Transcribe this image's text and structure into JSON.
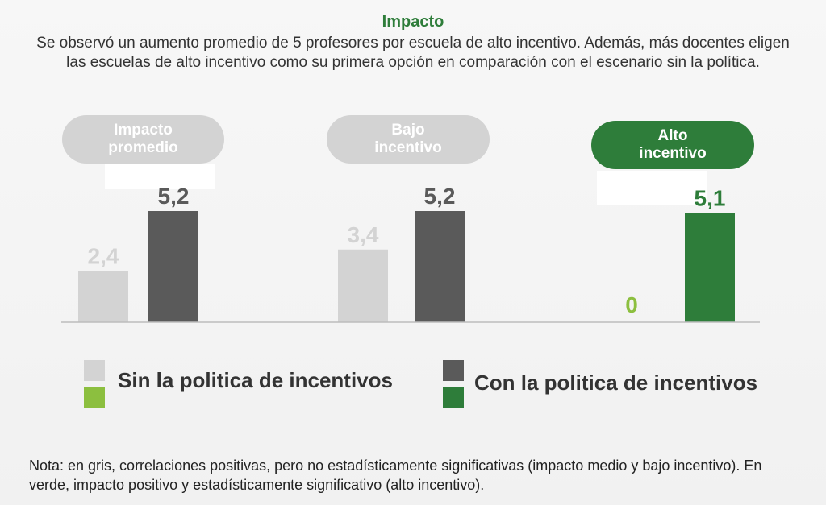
{
  "title": "Impacto",
  "subtitle": "Se observó un aumento promedio de 5 profesores por escuela de alto incentivo. Además, más docentes eligen las escuelas de alto incentivo como su primera opción en comparación con el escenario sin la política.",
  "colors": {
    "gray_light": "#d3d3d3",
    "gray_dark": "#5a5a5a",
    "green_light": "#8cbf3f",
    "green_dark": "#2e7d3a"
  },
  "chart_data": {
    "type": "bar",
    "categories": [
      "Impacto\npromedio",
      "Bajo\nincentivo",
      "Alto\nincentivo"
    ],
    "series": [
      {
        "name": "Sin la politica de incentivos",
        "values": [
          2.4,
          3.4,
          0
        ],
        "labels": [
          "2,4",
          "3,4",
          "0"
        ]
      },
      {
        "name": "Con la politica de incentivos",
        "values": [
          5.2,
          5.2,
          5.1
        ],
        "labels": [
          "5,2",
          "5,2",
          "5,1"
        ]
      }
    ],
    "significant": [
      false,
      false,
      true
    ],
    "ylim": [
      0,
      5.2
    ],
    "grid": false
  },
  "legend": {
    "sin": "Sin la politica de incentivos",
    "con": "Con la politica de incentivos"
  },
  "note": "Nota: en gris, correlaciones positivas, pero no estadísticamente significativas (impacto medio y bajo incentivo). En verde, impacto positivo y estadísticamente significativo (alto incentivo)."
}
